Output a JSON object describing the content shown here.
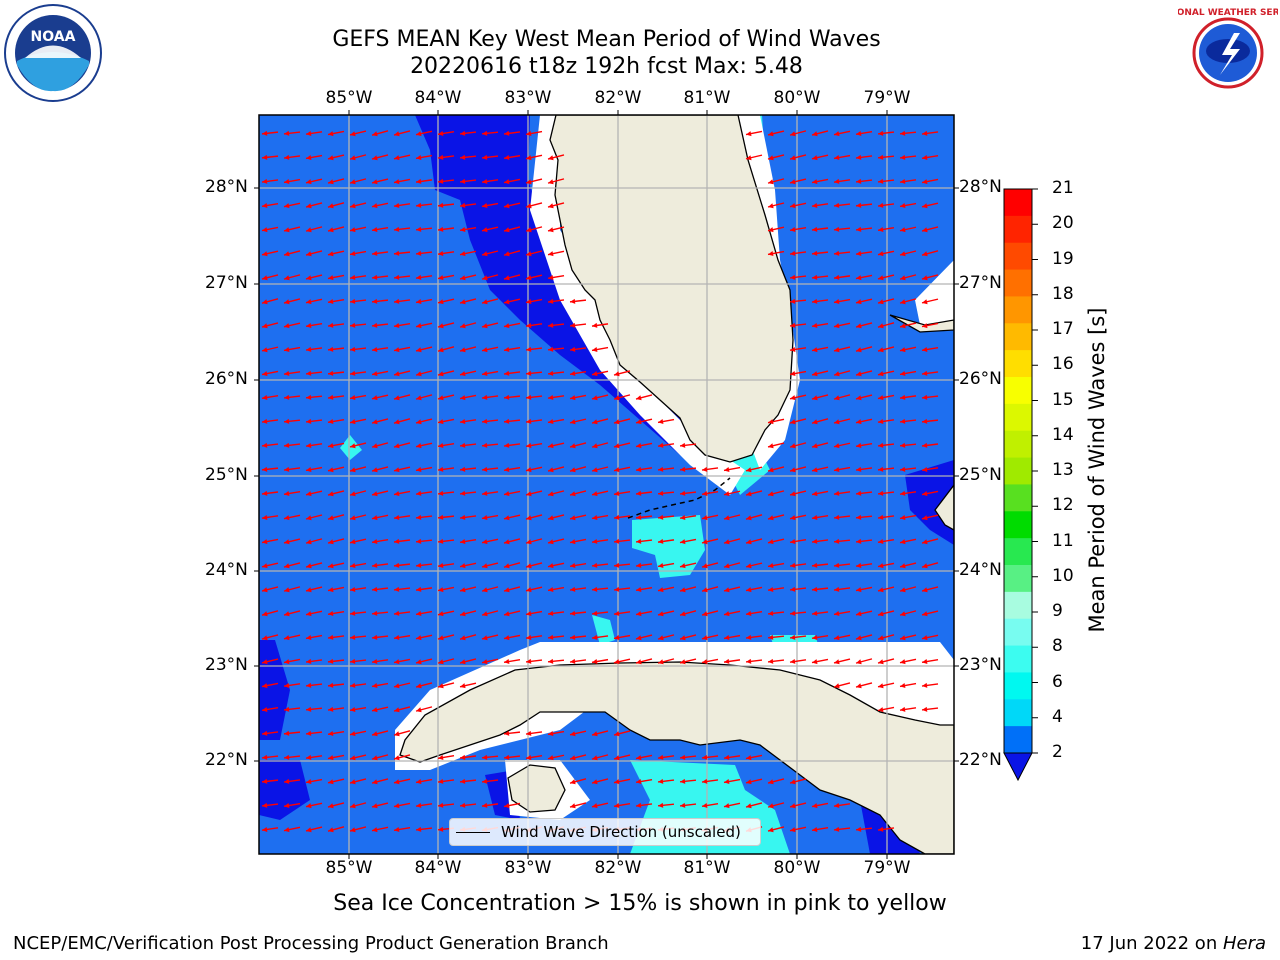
{
  "title": {
    "line1": "GEFS MEAN Key West Mean Period of Wind Waves",
    "line2": "20220616 t18z 192h fcst   Max: 5.48"
  },
  "map": {
    "lon_labels": [
      "85°W",
      "84°W",
      "83°W",
      "82°W",
      "81°W",
      "80°W",
      "79°W"
    ],
    "lat_labels": [
      "28°N",
      "27°N",
      "26°N",
      "25°N",
      "24°N",
      "23°N",
      "22°N"
    ],
    "legend": "Wind Wave Direction (unscaled)",
    "colors": {
      "ocean": "#1e6ff0",
      "deep_band": "#0a14e6",
      "cyan": "#38f6f0",
      "land": "#eeecdc",
      "grid": "#b4b4b4",
      "arrow": "#ff0000"
    }
  },
  "colorbar": {
    "label": "Mean Period of Wind Waves [s]",
    "ticks": [
      "21",
      "20",
      "19",
      "18",
      "17",
      "16",
      "15",
      "14",
      "13",
      "12",
      "11",
      "10",
      "9",
      "8",
      "6",
      "4",
      "2"
    ],
    "segment_colors": [
      "#ff0000",
      "#ff2400",
      "#ff4a00",
      "#ff7000",
      "#ff9600",
      "#ffba00",
      "#ffde00",
      "#f8ff00",
      "#dcf800",
      "#c0f000",
      "#a0ea00",
      "#58e020",
      "#00dc00",
      "#28e850",
      "#58f084",
      "#a8fce0",
      "#78fcf0",
      "#3cfcf0",
      "#00f8f0",
      "#00d8f8",
      "#0070f8"
    ]
  },
  "logos": {
    "noaa": "NOAA",
    "nws": "NATIONAL WEATHER SERVICE"
  },
  "subtitle": "Sea Ice Concentration > 15% is shown in pink to yellow",
  "footer": {
    "left": "NCEP/EMC/Verification Post Processing Product Generation Branch",
    "right_prefix": "17 Jun 2022 on ",
    "right_host": "Hera"
  }
}
